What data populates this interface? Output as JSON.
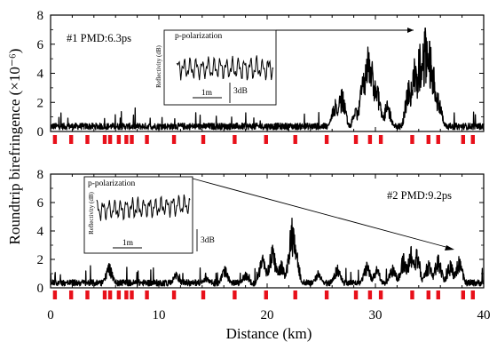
{
  "chart_data": {
    "type": "line",
    "xlabel": "Distance (km)",
    "ylabel": "Roundtrip birefringence (×10⁻⁶)",
    "xlim": [
      0,
      40
    ],
    "x_ticks": [
      "0",
      "10",
      "20",
      "30",
      "40"
    ],
    "ylim": [
      0,
      8
    ],
    "y_ticks": [
      "0",
      "2",
      "4",
      "6",
      "8"
    ],
    "panels": [
      {
        "label": "#1 PMD:6.3ps",
        "baseline": 0.5,
        "markers_km": [
          0.4,
          1.9,
          3.4,
          5.0,
          5.5,
          6.3,
          7.0,
          7.5,
          8.9,
          11.4,
          14.1,
          17.0,
          19.9,
          22.6,
          25.5,
          28.2,
          29.5,
          30.5,
          33.4,
          34.9,
          35.8,
          38.1,
          39.0
        ],
        "peaks": [
          {
            "x": 26.3,
            "y": 2.2
          },
          {
            "x": 26.9,
            "y": 2.9
          },
          {
            "x": 28.2,
            "y": 1.6
          },
          {
            "x": 28.9,
            "y": 4.0
          },
          {
            "x": 29.3,
            "y": 5.8
          },
          {
            "x": 29.7,
            "y": 4.8
          },
          {
            "x": 30.2,
            "y": 3.1
          },
          {
            "x": 31.1,
            "y": 2.1
          },
          {
            "x": 33.1,
            "y": 3.5
          },
          {
            "x": 33.6,
            "y": 5.0
          },
          {
            "x": 34.1,
            "y": 6.0
          },
          {
            "x": 34.6,
            "y": 7.1
          },
          {
            "x": 35.0,
            "y": 6.2
          },
          {
            "x": 35.4,
            "y": 4.4
          },
          {
            "x": 35.8,
            "y": 2.6
          }
        ],
        "inset": {
          "title": "p-polarization",
          "ylabel": "Reflectivity (dB)",
          "scale_x": "1m",
          "scale_y": "3dB"
        }
      },
      {
        "label": "#2 PMD:9.2ps",
        "baseline": 0.5,
        "markers_km": [
          0.4,
          1.9,
          3.4,
          5.0,
          5.5,
          6.3,
          7.0,
          7.5,
          8.9,
          11.4,
          14.1,
          17.0,
          19.9,
          22.6,
          25.5,
          28.2,
          29.5,
          30.5,
          33.4,
          34.9,
          35.8,
          38.1,
          39.0
        ],
        "peaks": [
          {
            "x": 5.4,
            "y": 1.7
          },
          {
            "x": 11.6,
            "y": 1.1
          },
          {
            "x": 14.3,
            "y": 0.9
          },
          {
            "x": 16.1,
            "y": 1.5
          },
          {
            "x": 18.0,
            "y": 1.1
          },
          {
            "x": 19.6,
            "y": 2.3
          },
          {
            "x": 20.5,
            "y": 3.0
          },
          {
            "x": 21.3,
            "y": 1.9
          },
          {
            "x": 22.3,
            "y": 4.9
          },
          {
            "x": 22.6,
            "y": 3.0
          },
          {
            "x": 24.7,
            "y": 1.2
          },
          {
            "x": 26.5,
            "y": 1.6
          },
          {
            "x": 29.2,
            "y": 1.8
          },
          {
            "x": 30.1,
            "y": 1.5
          },
          {
            "x": 31.6,
            "y": 1.6
          },
          {
            "x": 32.6,
            "y": 2.4
          },
          {
            "x": 33.3,
            "y": 2.9
          },
          {
            "x": 33.8,
            "y": 2.7
          },
          {
            "x": 34.9,
            "y": 1.9
          },
          {
            "x": 35.8,
            "y": 2.3
          },
          {
            "x": 36.9,
            "y": 1.9
          },
          {
            "x": 37.7,
            "y": 2.2
          }
        ],
        "inset": {
          "title": "p-polarization",
          "ylabel": "Reflectivity (dB)",
          "scale_x": "1m",
          "scale_y": "3dB"
        }
      }
    ]
  },
  "colors": {
    "trace": "#000000",
    "marker": "#e8101a",
    "axis": "#000000",
    "background": "#ffffff"
  }
}
